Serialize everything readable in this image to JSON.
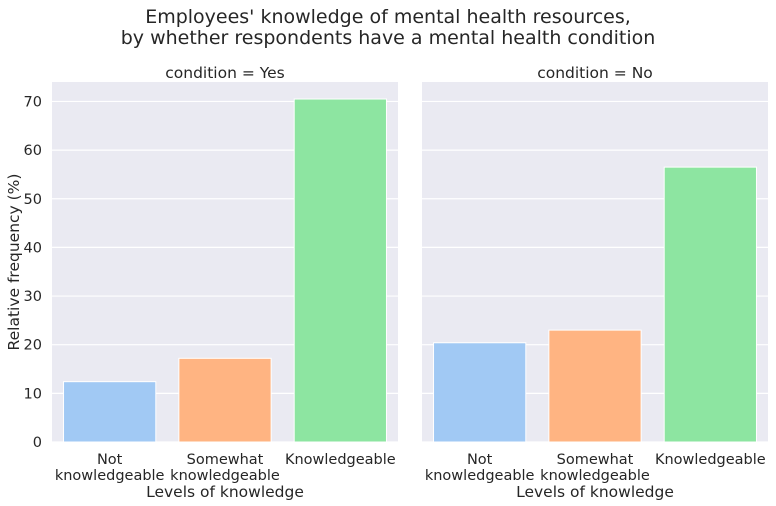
{
  "chart_data": {
    "type": "bar",
    "title_lines": [
      "Employees' knowledge of mental health resources,",
      "by whether respondents have a mental health condition"
    ],
    "ylabel": "Relative frequency (%)",
    "ylim": [
      0,
      74
    ],
    "yticks": [
      "0",
      "10",
      "20",
      "30",
      "40",
      "50",
      "60",
      "70"
    ],
    "grid": true,
    "colors": [
      "#a1c9f4",
      "#ffb482",
      "#8de5a1"
    ],
    "facets": [
      {
        "title": "condition = Yes",
        "xlabel": "Levels of knowledge",
        "categories": [
          [
            "Not",
            "knowledgeable"
          ],
          [
            "Somewhat",
            "knowledgeable"
          ],
          [
            "Knowledgeable"
          ]
        ],
        "values": [
          12.4,
          17.2,
          70.5
        ]
      },
      {
        "title": "condition = No",
        "xlabel": "Levels of knowledge",
        "categories": [
          [
            "Not",
            "knowledgeable"
          ],
          [
            "Somewhat",
            "knowledgeable"
          ],
          [
            "Knowledgeable"
          ]
        ],
        "values": [
          20.4,
          23.0,
          56.5
        ]
      }
    ]
  }
}
